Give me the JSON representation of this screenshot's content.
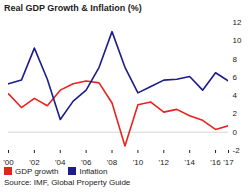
{
  "chart_data": {
    "type": "line",
    "title": "Real GDP Growth & Inflation (%)",
    "x": [
      2000,
      2001,
      2002,
      2003,
      2004,
      2005,
      2006,
      2007,
      2008,
      2009,
      2010,
      2011,
      2012,
      2013,
      2014,
      2015,
      2016,
      2017
    ],
    "series": [
      {
        "name": "GDP growth",
        "color": "#e8231e",
        "values": [
          4.2,
          2.7,
          3.7,
          2.9,
          4.6,
          5.3,
          5.6,
          5.4,
          3.2,
          -1.5,
          3.0,
          3.3,
          2.2,
          2.5,
          1.8,
          1.3,
          0.3,
          0.7
        ]
      },
      {
        "name": "Inflation",
        "color": "#1c1c8a",
        "values": [
          5.3,
          5.7,
          9.2,
          5.8,
          1.4,
          3.4,
          4.6,
          7.1,
          11.0,
          7.1,
          4.3,
          5.0,
          5.7,
          5.8,
          6.1,
          4.6,
          6.5,
          5.6
        ]
      }
    ],
    "xlim": [
      2000,
      2017
    ],
    "xticks": [
      {
        "value": 2000,
        "label": "'00"
      },
      {
        "value": 2002,
        "label": "'02"
      },
      {
        "value": 2004,
        "label": "'04"
      },
      {
        "value": 2006,
        "label": "'06"
      },
      {
        "value": 2008,
        "label": "'08"
      },
      {
        "value": 2010,
        "label": "'10"
      },
      {
        "value": 2012,
        "label": "'12"
      },
      {
        "value": 2014,
        "label": "'14"
      },
      {
        "value": 2016,
        "label": "'16"
      },
      {
        "value": 2017,
        "label": "'17"
      }
    ],
    "ylim": [
      -2,
      12
    ],
    "yticks": [
      -2,
      0,
      2,
      4,
      6,
      8,
      10,
      12
    ],
    "grid": false,
    "legend": "bottom",
    "source": "Source: IMF, Global Property Guide"
  }
}
